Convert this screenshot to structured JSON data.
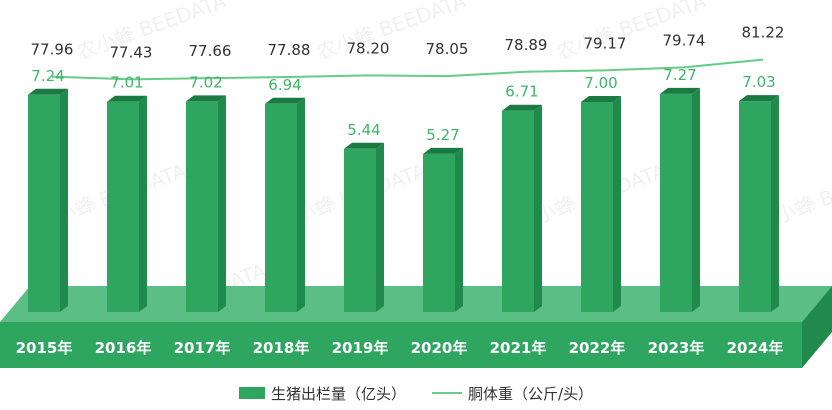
{
  "chart_data": {
    "type": "bar",
    "categories": [
      "2015年",
      "2016年",
      "2017年",
      "2018年",
      "2019年",
      "2020年",
      "2021年",
      "2022年",
      "2023年",
      "2024年"
    ],
    "series": [
      {
        "name": "生猪出栏量（亿头）",
        "type": "bar",
        "values": [
          7.24,
          7.01,
          7.02,
          6.94,
          5.44,
          5.27,
          6.71,
          7.0,
          7.27,
          7.03
        ],
        "color": "#2ea660"
      },
      {
        "name": "胴体重（公斤/头）",
        "type": "line",
        "values": [
          77.96,
          77.43,
          77.66,
          77.88,
          78.2,
          78.05,
          78.89,
          79.17,
          79.74,
          81.22
        ],
        "color": "#66cc88"
      }
    ],
    "bar_ylim": [
      0,
      8
    ],
    "line_ylim": [
      60,
      85
    ],
    "grid": false,
    "legend_position": "bottom",
    "watermark": "农小蜂 BEEDATA"
  }
}
